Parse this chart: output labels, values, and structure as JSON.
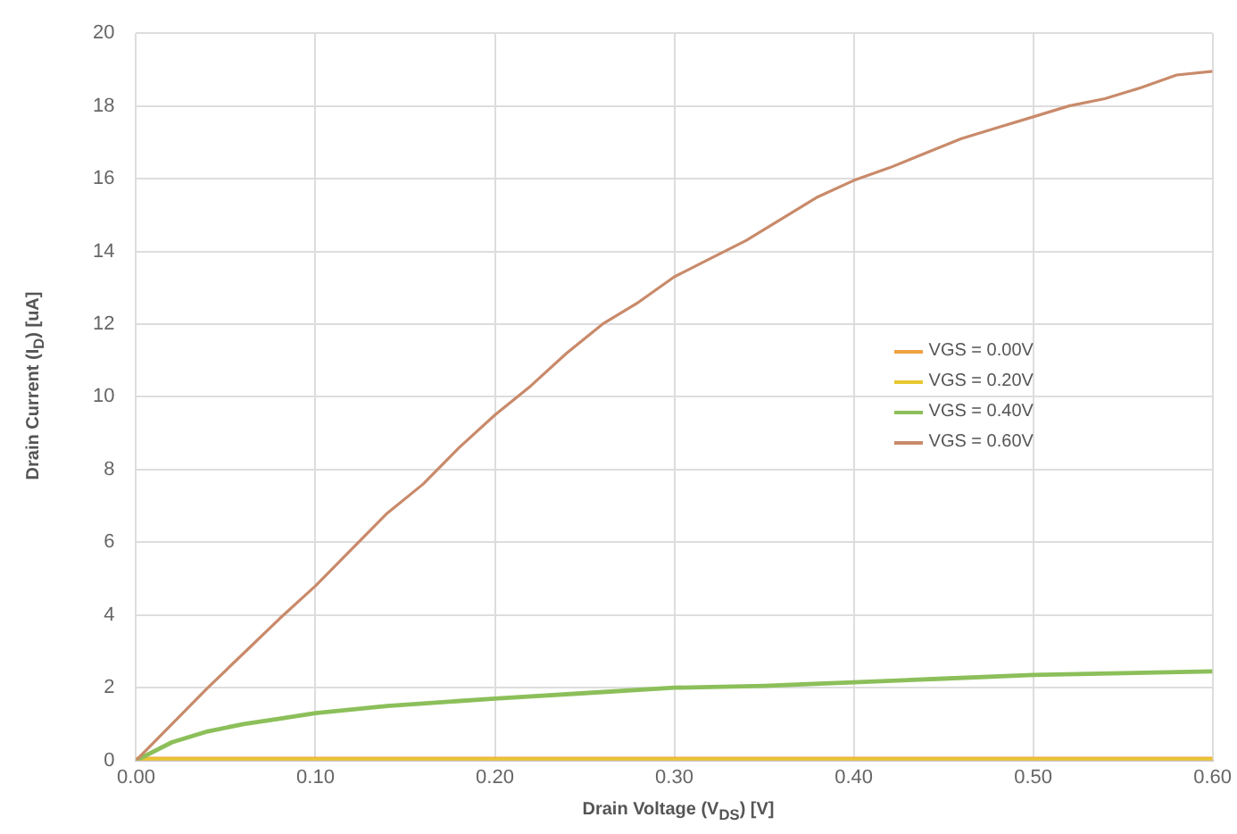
{
  "chart_data": {
    "type": "line",
    "xlabel": "Drain Voltage (V$_{DS}$) [V]",
    "ylabel": "Drain Current (I$_{D}$) [uA]",
    "xlim": [
      0,
      0.6
    ],
    "xticks": [
      {
        "value": 0,
        "label": "0.00"
      },
      {
        "value": 0.1,
        "label": "0.10"
      },
      {
        "value": 0.2,
        "label": "0.20"
      },
      {
        "value": 0.3,
        "label": "0.30"
      },
      {
        "value": 0.4,
        "label": "0.40"
      },
      {
        "value": 0.5,
        "label": "0.50"
      },
      {
        "value": 0.6,
        "label": "0.60"
      }
    ],
    "ylim": [
      0,
      20
    ],
    "yticks": [
      0,
      2,
      4,
      6,
      8,
      10,
      12,
      14,
      16,
      18,
      20
    ],
    "grid": true,
    "legend": "right",
    "marker": "none",
    "line_style": "solid",
    "series": [
      {
        "name": "VGS = 0.00V",
        "color": "#f0a040",
        "x": [
          0,
          0.3,
          0.6
        ],
        "values": [
          0,
          0,
          0
        ]
      },
      {
        "name": "VGS = 0.20V",
        "color": "#e8c830",
        "x": [
          0,
          0.3,
          0.6
        ],
        "values": [
          0,
          0,
          0
        ]
      },
      {
        "name": "VGS = 0.40V",
        "color": "#8cbf5a",
        "x": [
          0,
          0.02,
          0.04,
          0.06,
          0.08,
          0.1,
          0.14,
          0.2,
          0.25,
          0.3,
          0.35,
          0.4,
          0.45,
          0.5,
          0.55,
          0.6
        ],
        "values": [
          0,
          0.5,
          0.8,
          1.0,
          1.15,
          1.3,
          1.5,
          1.7,
          1.85,
          2.0,
          2.05,
          2.15,
          2.25,
          2.35,
          2.4,
          2.45
        ]
      },
      {
        "name": "VGS = 0.60V",
        "color": "#c98a6a",
        "x": [
          0,
          0.02,
          0.04,
          0.06,
          0.08,
          0.1,
          0.12,
          0.14,
          0.16,
          0.18,
          0.2,
          0.22,
          0.24,
          0.26,
          0.28,
          0.3,
          0.32,
          0.34,
          0.36,
          0.38,
          0.4,
          0.42,
          0.44,
          0.46,
          0.48,
          0.5,
          0.52,
          0.54,
          0.56,
          0.58,
          0.6
        ],
        "values": [
          0,
          1.0,
          2.0,
          2.95,
          3.9,
          4.8,
          5.8,
          6.8,
          7.6,
          8.6,
          9.5,
          10.3,
          11.2,
          12.0,
          12.6,
          13.3,
          13.8,
          14.3,
          14.9,
          15.5,
          15.95,
          16.3,
          16.7,
          17.1,
          17.4,
          17.7,
          18.0,
          18.2,
          18.5,
          18.85,
          18.95
        ]
      }
    ]
  }
}
